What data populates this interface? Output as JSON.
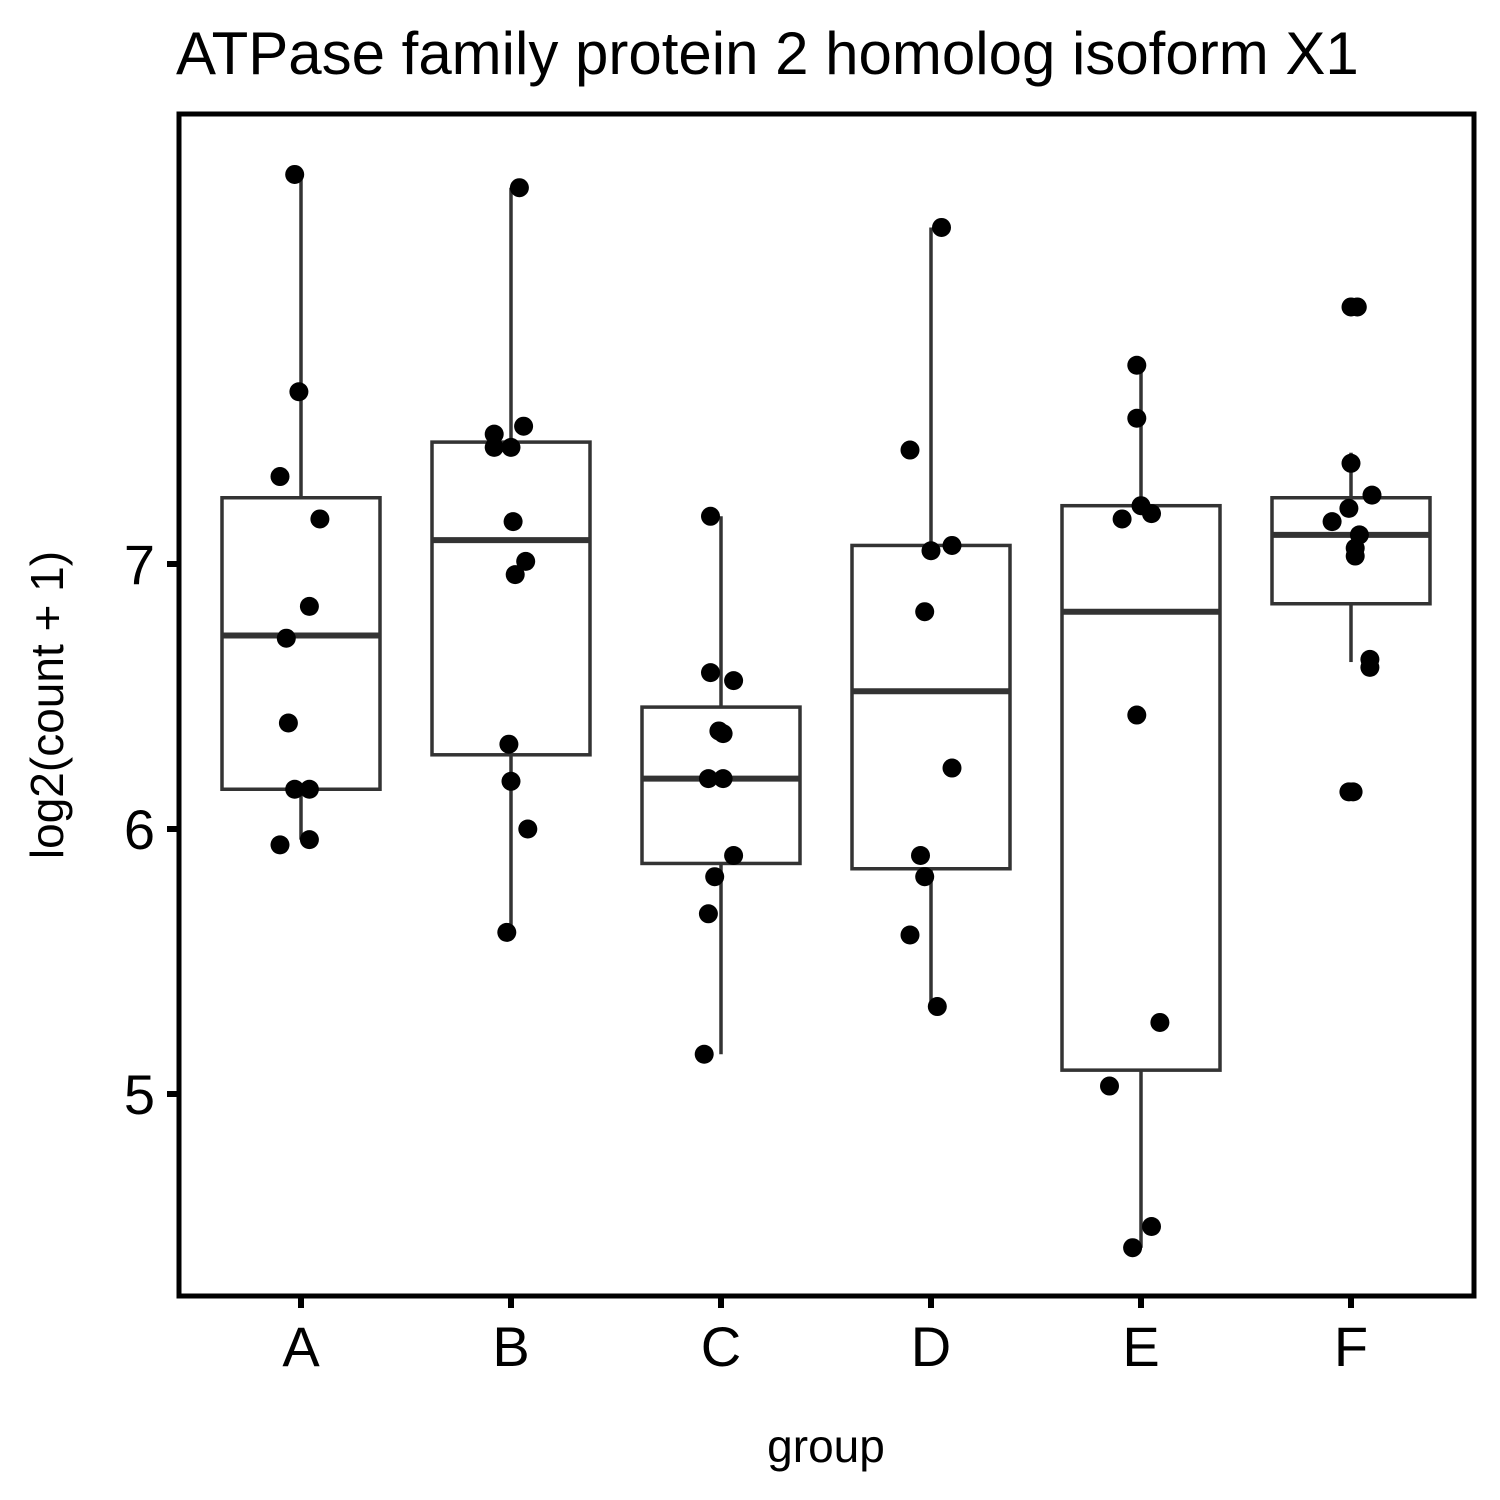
{
  "chart_data": {
    "type": "box",
    "title": "ATPase family protein 2 homolog isoform X1",
    "xlabel": "group",
    "ylabel": "log2(count + 1)",
    "ylim": [
      4.2,
      8.65
    ],
    "yticks": [
      5,
      6,
      7
    ],
    "categories": [
      "A",
      "B",
      "C",
      "D",
      "E",
      "F"
    ],
    "colors": {
      "box": "#333333",
      "point": "#000000",
      "frame": "#000000",
      "background": "#ffffff"
    },
    "grid": false,
    "legend": "none",
    "boxes": [
      {
        "group": "A",
        "whisker_low": 5.96,
        "q1": 6.15,
        "median": 6.73,
        "q3": 7.25,
        "whisker_high": 8.47
      },
      {
        "group": "B",
        "whisker_low": 5.61,
        "q1": 6.28,
        "median": 7.09,
        "q3": 7.46,
        "whisker_high": 8.42
      },
      {
        "group": "C",
        "whisker_low": 5.15,
        "q1": 5.87,
        "median": 6.19,
        "q3": 6.46,
        "whisker_high": 7.18
      },
      {
        "group": "D",
        "whisker_low": 5.33,
        "q1": 5.85,
        "median": 6.52,
        "q3": 7.07,
        "whisker_high": 8.27
      },
      {
        "group": "E",
        "whisker_low": 4.42,
        "q1": 5.09,
        "median": 6.82,
        "q3": 7.22,
        "whisker_high": 7.75
      },
      {
        "group": "F",
        "whisker_low": 6.63,
        "q1": 6.85,
        "median": 7.11,
        "q3": 7.25,
        "whisker_high": 7.42
      }
    ],
    "points": [
      {
        "group": "A",
        "jitter": -0.03,
        "y": 8.47
      },
      {
        "group": "A",
        "jitter": -0.01,
        "y": 7.65
      },
      {
        "group": "A",
        "jitter": -0.1,
        "y": 7.33
      },
      {
        "group": "A",
        "jitter": 0.09,
        "y": 7.17
      },
      {
        "group": "A",
        "jitter": 0.04,
        "y": 6.84
      },
      {
        "group": "A",
        "jitter": -0.07,
        "y": 6.72
      },
      {
        "group": "A",
        "jitter": -0.06,
        "y": 6.4
      },
      {
        "group": "A",
        "jitter": -0.03,
        "y": 6.15
      },
      {
        "group": "A",
        "jitter": 0.04,
        "y": 6.15
      },
      {
        "group": "A",
        "jitter": -0.1,
        "y": 5.94
      },
      {
        "group": "A",
        "jitter": 0.04,
        "y": 5.96
      },
      {
        "group": "B",
        "jitter": 0.04,
        "y": 8.42
      },
      {
        "group": "B",
        "jitter": 0.06,
        "y": 7.52
      },
      {
        "group": "B",
        "jitter": -0.08,
        "y": 7.49
      },
      {
        "group": "B",
        "jitter": -0.08,
        "y": 7.44
      },
      {
        "group": "B",
        "jitter": 0.0,
        "y": 7.44
      },
      {
        "group": "B",
        "jitter": 0.01,
        "y": 7.16
      },
      {
        "group": "B",
        "jitter": 0.07,
        "y": 7.01
      },
      {
        "group": "B",
        "jitter": 0.02,
        "y": 6.96
      },
      {
        "group": "B",
        "jitter": -0.01,
        "y": 6.32
      },
      {
        "group": "B",
        "jitter": 0.0,
        "y": 6.18
      },
      {
        "group": "B",
        "jitter": 0.08,
        "y": 6.0
      },
      {
        "group": "B",
        "jitter": -0.02,
        "y": 5.61
      },
      {
        "group": "C",
        "jitter": -0.05,
        "y": 7.18
      },
      {
        "group": "C",
        "jitter": -0.05,
        "y": 6.59
      },
      {
        "group": "C",
        "jitter": 0.06,
        "y": 6.56
      },
      {
        "group": "C",
        "jitter": -0.01,
        "y": 6.37
      },
      {
        "group": "C",
        "jitter": 0.01,
        "y": 6.36
      },
      {
        "group": "C",
        "jitter": -0.06,
        "y": 6.19
      },
      {
        "group": "C",
        "jitter": 0.01,
        "y": 6.19
      },
      {
        "group": "C",
        "jitter": 0.06,
        "y": 5.9
      },
      {
        "group": "C",
        "jitter": -0.03,
        "y": 5.82
      },
      {
        "group": "C",
        "jitter": -0.06,
        "y": 5.68
      },
      {
        "group": "C",
        "jitter": -0.08,
        "y": 5.15
      },
      {
        "group": "D",
        "jitter": 0.05,
        "y": 8.27
      },
      {
        "group": "D",
        "jitter": -0.1,
        "y": 7.43
      },
      {
        "group": "D",
        "jitter": 0.1,
        "y": 7.07
      },
      {
        "group": "D",
        "jitter": 0.0,
        "y": 7.05
      },
      {
        "group": "D",
        "jitter": -0.03,
        "y": 6.82
      },
      {
        "group": "D",
        "jitter": 0.1,
        "y": 6.23
      },
      {
        "group": "D",
        "jitter": -0.05,
        "y": 5.9
      },
      {
        "group": "D",
        "jitter": -0.03,
        "y": 5.82
      },
      {
        "group": "D",
        "jitter": -0.1,
        "y": 5.6
      },
      {
        "group": "D",
        "jitter": 0.03,
        "y": 5.33
      },
      {
        "group": "E",
        "jitter": -0.02,
        "y": 7.75
      },
      {
        "group": "E",
        "jitter": -0.02,
        "y": 7.55
      },
      {
        "group": "E",
        "jitter": 0.0,
        "y": 7.22
      },
      {
        "group": "E",
        "jitter": 0.05,
        "y": 7.19
      },
      {
        "group": "E",
        "jitter": -0.09,
        "y": 7.17
      },
      {
        "group": "E",
        "jitter": -0.02,
        "y": 6.43
      },
      {
        "group": "E",
        "jitter": 0.09,
        "y": 5.27
      },
      {
        "group": "E",
        "jitter": -0.15,
        "y": 5.03
      },
      {
        "group": "E",
        "jitter": 0.05,
        "y": 4.5
      },
      {
        "group": "E",
        "jitter": -0.04,
        "y": 4.42
      },
      {
        "group": "F",
        "jitter": 0.0,
        "y": 7.97
      },
      {
        "group": "F",
        "jitter": 0.03,
        "y": 7.97
      },
      {
        "group": "F",
        "jitter": 0.0,
        "y": 7.38
      },
      {
        "group": "F",
        "jitter": 0.1,
        "y": 7.26
      },
      {
        "group": "F",
        "jitter": -0.01,
        "y": 7.21
      },
      {
        "group": "F",
        "jitter": -0.09,
        "y": 7.16
      },
      {
        "group": "F",
        "jitter": 0.04,
        "y": 7.11
      },
      {
        "group": "F",
        "jitter": 0.02,
        "y": 7.06
      },
      {
        "group": "F",
        "jitter": 0.02,
        "y": 7.03
      },
      {
        "group": "F",
        "jitter": 0.09,
        "y": 6.64
      },
      {
        "group": "F",
        "jitter": 0.09,
        "y": 6.61
      },
      {
        "group": "F",
        "jitter": -0.01,
        "y": 6.14
      },
      {
        "group": "F",
        "jitter": 0.01,
        "y": 6.14
      }
    ]
  }
}
